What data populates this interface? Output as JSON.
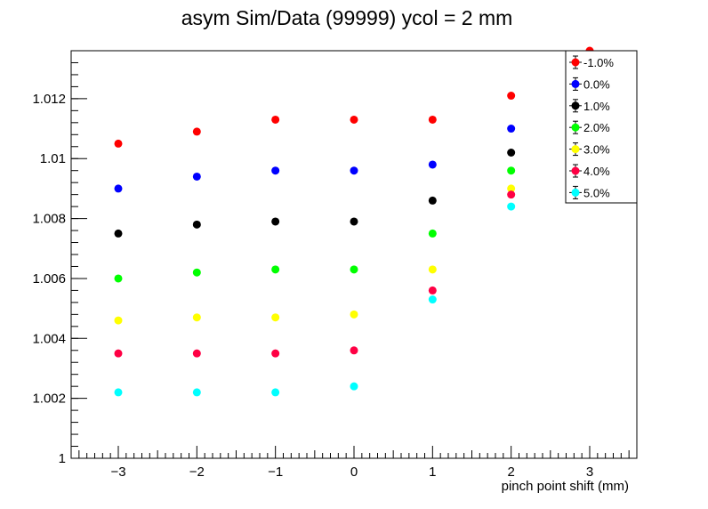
{
  "chart_data": {
    "type": "scatter",
    "title": "asym Sim/Data (99999) ycol = 2 mm",
    "xlabel": "pinch point shift (mm)",
    "ylabel": "",
    "xlim": [
      -3.6,
      3.6
    ],
    "ylim": [
      1.0,
      1.0136
    ],
    "x_ticks": [
      -3,
      -2,
      -1,
      0,
      1,
      2,
      3
    ],
    "x_tick_labels": [
      "−3",
      "−2",
      "−1",
      "0",
      "1",
      "2",
      "3"
    ],
    "y_ticks": [
      1.0,
      1.002,
      1.004,
      1.006,
      1.008,
      1.01,
      1.012
    ],
    "y_tick_labels": [
      "1",
      "1.002",
      "1.004",
      "1.006",
      "1.008",
      "1.01",
      "1.012"
    ],
    "legend_position": "top-right",
    "x": [
      -3,
      -2,
      -1,
      0,
      1,
      2,
      3
    ],
    "series": [
      {
        "name": "-1.0%",
        "color": "#ff0000",
        "values": [
          1.0105,
          1.0109,
          1.0113,
          1.0113,
          1.0113,
          1.0121,
          1.0136
        ]
      },
      {
        "name": "0.0%",
        "color": "#0000ff",
        "values": [
          1.009,
          1.0094,
          1.0096,
          1.0096,
          1.0098,
          1.011,
          null
        ]
      },
      {
        "name": "1.0%",
        "color": "#000000",
        "values": [
          1.0075,
          1.0078,
          1.0079,
          1.0079,
          1.0086,
          1.0102,
          null
        ]
      },
      {
        "name": "2.0%",
        "color": "#00ff00",
        "values": [
          1.006,
          1.0062,
          1.0063,
          1.0063,
          1.0075,
          1.0096,
          null
        ]
      },
      {
        "name": "3.0%",
        "color": "#ffff00",
        "values": [
          1.0046,
          1.0047,
          1.0047,
          1.0048,
          1.0063,
          1.009,
          null
        ]
      },
      {
        "name": "4.0%",
        "color": "#ff0044",
        "values": [
          1.0035,
          1.0035,
          1.0035,
          1.0036,
          1.0056,
          1.0088,
          null
        ]
      },
      {
        "name": "5.0%",
        "color": "#00ffff",
        "values": [
          1.0022,
          1.0022,
          1.0022,
          1.0024,
          1.0053,
          1.0084,
          null
        ]
      }
    ]
  }
}
